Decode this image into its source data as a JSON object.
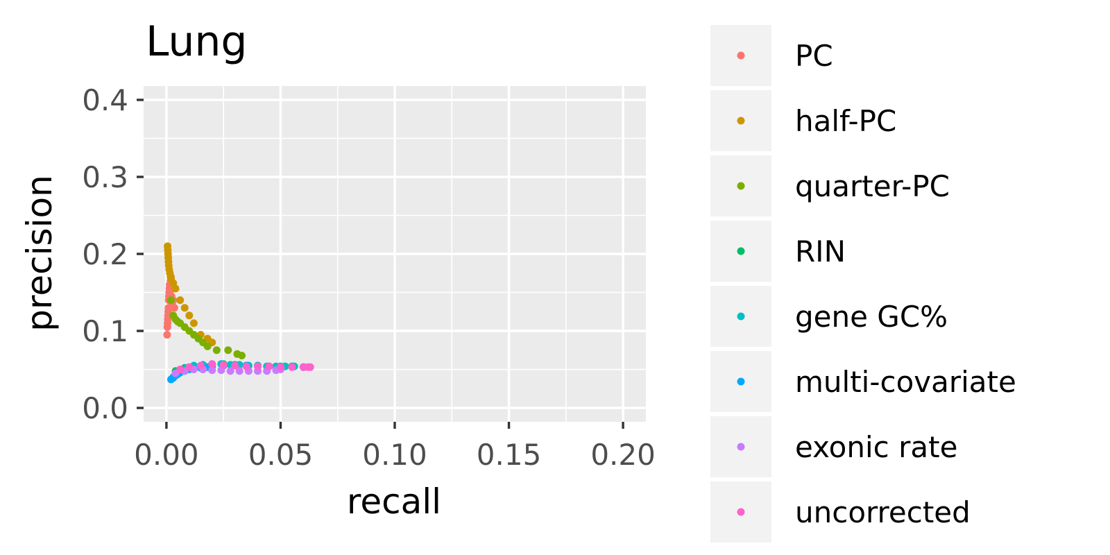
{
  "chart_data": {
    "type": "scatter",
    "title": "Lung",
    "xlabel": "recall",
    "ylabel": "precision",
    "xlim": [
      -0.01,
      0.21
    ],
    "ylim": [
      -0.018,
      0.418
    ],
    "x_ticks": [
      "0.00",
      "0.05",
      "0.10",
      "0.15",
      "0.20"
    ],
    "y_ticks": [
      "0.0",
      "0.1",
      "0.2",
      "0.3",
      "0.4"
    ],
    "grid": true,
    "legend_position": "right",
    "background": "#ebebeb",
    "series": [
      {
        "name": "PC",
        "color": "#f8766d",
        "x": [
          0.0003,
          0.0004,
          0.0005,
          0.0006,
          0.0007,
          0.0008,
          0.0009,
          0.001,
          0.0011,
          0.0012,
          0.0013,
          0.0014,
          0.0015,
          0.0016,
          0.0018,
          0.002,
          0.0022,
          0.0025,
          0.003,
          0.0035
        ],
        "y": [
          0.095,
          0.105,
          0.11,
          0.115,
          0.12,
          0.125,
          0.13,
          0.14,
          0.145,
          0.15,
          0.155,
          0.16,
          0.15,
          0.14,
          0.165,
          0.17,
          0.145,
          0.135,
          0.14,
          0.13
        ]
      },
      {
        "name": "half-PC",
        "color": "#cd9600",
        "x": [
          0.0005,
          0.0006,
          0.0007,
          0.0008,
          0.0009,
          0.001,
          0.0012,
          0.0015,
          0.0018,
          0.002,
          0.003,
          0.004,
          0.006,
          0.008,
          0.01,
          0.012,
          0.015,
          0.018,
          0.02
        ],
        "y": [
          0.21,
          0.205,
          0.2,
          0.195,
          0.19,
          0.185,
          0.18,
          0.175,
          0.17,
          0.168,
          0.162,
          0.155,
          0.14,
          0.13,
          0.12,
          0.11,
          0.095,
          0.09,
          0.085
        ]
      },
      {
        "name": "quarter-PC",
        "color": "#7cae00",
        "x": [
          0.002,
          0.003,
          0.004,
          0.005,
          0.006,
          0.008,
          0.01,
          0.012,
          0.014,
          0.016,
          0.018,
          0.022,
          0.027,
          0.031,
          0.033
        ],
        "y": [
          0.14,
          0.12,
          0.115,
          0.112,
          0.11,
          0.105,
          0.1,
          0.095,
          0.09,
          0.085,
          0.08,
          0.075,
          0.075,
          0.07,
          0.068
        ]
      },
      {
        "name": "RIN",
        "color": "#00be67",
        "x": [
          0.004,
          0.008,
          0.012,
          0.016,
          0.02,
          0.025,
          0.03,
          0.035,
          0.04,
          0.045,
          0.05,
          0.055,
          0.06
        ],
        "y": [
          0.048,
          0.052,
          0.054,
          0.055,
          0.056,
          0.057,
          0.056,
          0.055,
          0.055,
          0.054,
          0.054,
          0.054,
          0.053
        ]
      },
      {
        "name": "gene GC%",
        "color": "#00bfc4",
        "x": [
          0.003,
          0.006,
          0.009,
          0.012,
          0.016,
          0.02,
          0.024,
          0.028,
          0.032,
          0.036,
          0.04,
          0.044,
          0.048,
          0.052,
          0.056,
          0.06
        ],
        "y": [
          0.04,
          0.048,
          0.052,
          0.055,
          0.056,
          0.057,
          0.057,
          0.056,
          0.056,
          0.055,
          0.055,
          0.054,
          0.054,
          0.054,
          0.054,
          0.053
        ]
      },
      {
        "name": "multi-covariate",
        "color": "#00a9ff",
        "x": [
          0.002,
          0.003,
          0.004,
          0.005,
          0.006,
          0.008,
          0.01,
          0.012,
          0.015,
          0.018,
          0.02,
          0.025,
          0.03,
          0.035,
          0.04
        ],
        "y": [
          0.037,
          0.039,
          0.042,
          0.044,
          0.046,
          0.048,
          0.05,
          0.051,
          0.052,
          0.053,
          0.054,
          0.055,
          0.055,
          0.055,
          0.054
        ]
      },
      {
        "name": "exonic rate",
        "color": "#c77cff",
        "x": [
          0.004,
          0.008,
          0.012,
          0.016,
          0.02,
          0.024,
          0.028,
          0.032,
          0.036,
          0.04,
          0.044,
          0.048,
          0.05
        ],
        "y": [
          0.045,
          0.048,
          0.05,
          0.05,
          0.049,
          0.049,
          0.048,
          0.048,
          0.048,
          0.048,
          0.048,
          0.049,
          0.05
        ]
      },
      {
        "name": "uncorrected",
        "color": "#ff61cc",
        "x": [
          0.006,
          0.01,
          0.015,
          0.02,
          0.025,
          0.03,
          0.035,
          0.04,
          0.045,
          0.05,
          0.055,
          0.06,
          0.062,
          0.063
        ],
        "y": [
          0.05,
          0.053,
          0.055,
          0.057,
          0.056,
          0.055,
          0.054,
          0.054,
          0.054,
          0.053,
          0.053,
          0.053,
          0.053,
          0.053
        ]
      }
    ]
  }
}
